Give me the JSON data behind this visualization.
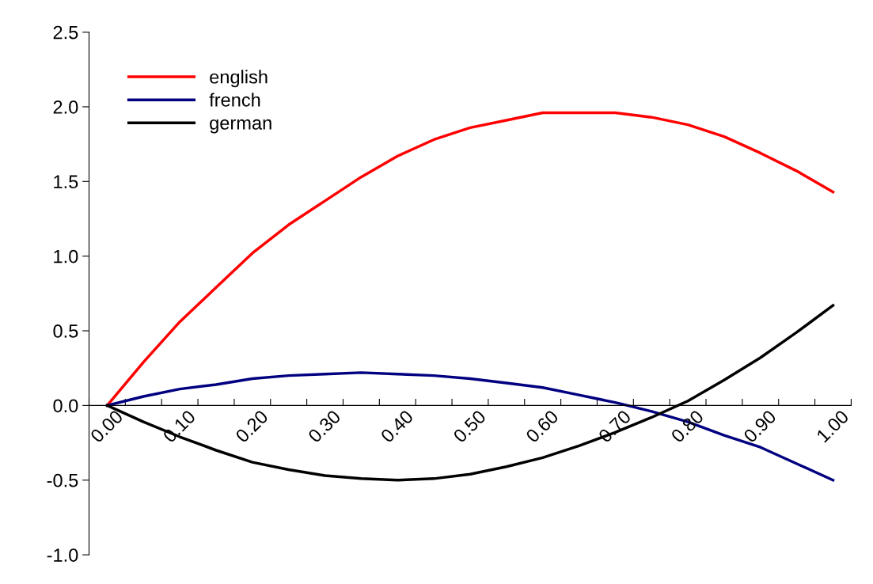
{
  "chart_data": {
    "type": "line",
    "categories": [
      "0.00",
      null,
      "0.10",
      null,
      "0.20",
      null,
      "0.30",
      null,
      "0.40",
      null,
      "0.50",
      null,
      "0.60",
      null,
      "0.70",
      null,
      "0.80",
      null,
      "0.90",
      null,
      "1.00"
    ],
    "series": [
      {
        "name": "english",
        "color": "#ff0000",
        "values": [
          0,
          0.29,
          0.56,
          0.79,
          1.02,
          1.21,
          1.37,
          1.53,
          1.67,
          1.78,
          1.86,
          1.91,
          1.96,
          1.96,
          1.96,
          1.93,
          1.88,
          1.8,
          1.69,
          1.57,
          1.43
        ]
      },
      {
        "name": "french",
        "color": "#000080",
        "values": [
          0,
          0.06,
          0.11,
          0.14,
          0.18,
          0.2,
          0.21,
          0.22,
          0.21,
          0.2,
          0.18,
          0.15,
          0.12,
          0.07,
          0.02,
          -0.04,
          -0.11,
          -0.2,
          -0.28,
          -0.39,
          -0.5
        ]
      },
      {
        "name": "german",
        "color": "#000000",
        "values": [
          0,
          -0.11,
          -0.21,
          -0.3,
          -0.38,
          -0.43,
          -0.47,
          -0.49,
          -0.5,
          -0.49,
          -0.46,
          -0.41,
          -0.35,
          -0.27,
          -0.18,
          -0.08,
          0.03,
          0.17,
          0.32,
          0.49,
          0.67
        ]
      }
    ],
    "ylim": [
      -1.0,
      2.5
    ],
    "yticks": [
      {
        "value": -1.0,
        "label": "-1.0"
      },
      {
        "value": -0.5,
        "label": "-0.5"
      },
      {
        "value": 0,
        "label": "0.0"
      },
      {
        "value": 0.5,
        "label": "0.5"
      },
      {
        "value": 1.0,
        "label": "1.0"
      },
      {
        "value": 1.5,
        "label": "1.5"
      },
      {
        "value": 2.0,
        "label": "2.0"
      },
      {
        "value": 2.5,
        "label": "2.5"
      }
    ],
    "grid": false,
    "legend": "top left",
    "marker": "none",
    "line_style": "solid"
  }
}
